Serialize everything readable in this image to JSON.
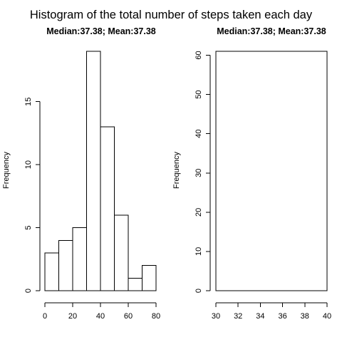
{
  "title": "Histogram of the total number of steps taken each day",
  "chart_data": [
    {
      "type": "bar",
      "subtitle": "Median:37.38; Mean:37.38",
      "ylabel": "Frequency",
      "xlabel": "",
      "bins": [
        [
          0,
          10
        ],
        [
          10,
          20
        ],
        [
          20,
          30
        ],
        [
          30,
          40
        ],
        [
          40,
          50
        ],
        [
          50,
          60
        ],
        [
          60,
          70
        ],
        [
          70,
          80
        ]
      ],
      "values": [
        3,
        4,
        5,
        19,
        13,
        6,
        1,
        2
      ],
      "xlim": [
        0,
        80
      ],
      "ylim": [
        0,
        19
      ],
      "xticks": [
        0,
        20,
        40,
        60,
        80
      ],
      "yticks": [
        0,
        5,
        10,
        15
      ],
      "grid": false
    },
    {
      "type": "bar",
      "subtitle": "Median:37.38; Mean:37.38",
      "ylabel": "Frequency",
      "xlabel": "",
      "bins": [
        [
          30,
          40
        ]
      ],
      "values": [
        61
      ],
      "xlim": [
        30,
        40
      ],
      "ylim": [
        0,
        61
      ],
      "xticks": [
        30,
        32,
        34,
        36,
        38,
        40
      ],
      "yticks": [
        0,
        10,
        20,
        30,
        40,
        50,
        60
      ],
      "grid": false
    }
  ]
}
